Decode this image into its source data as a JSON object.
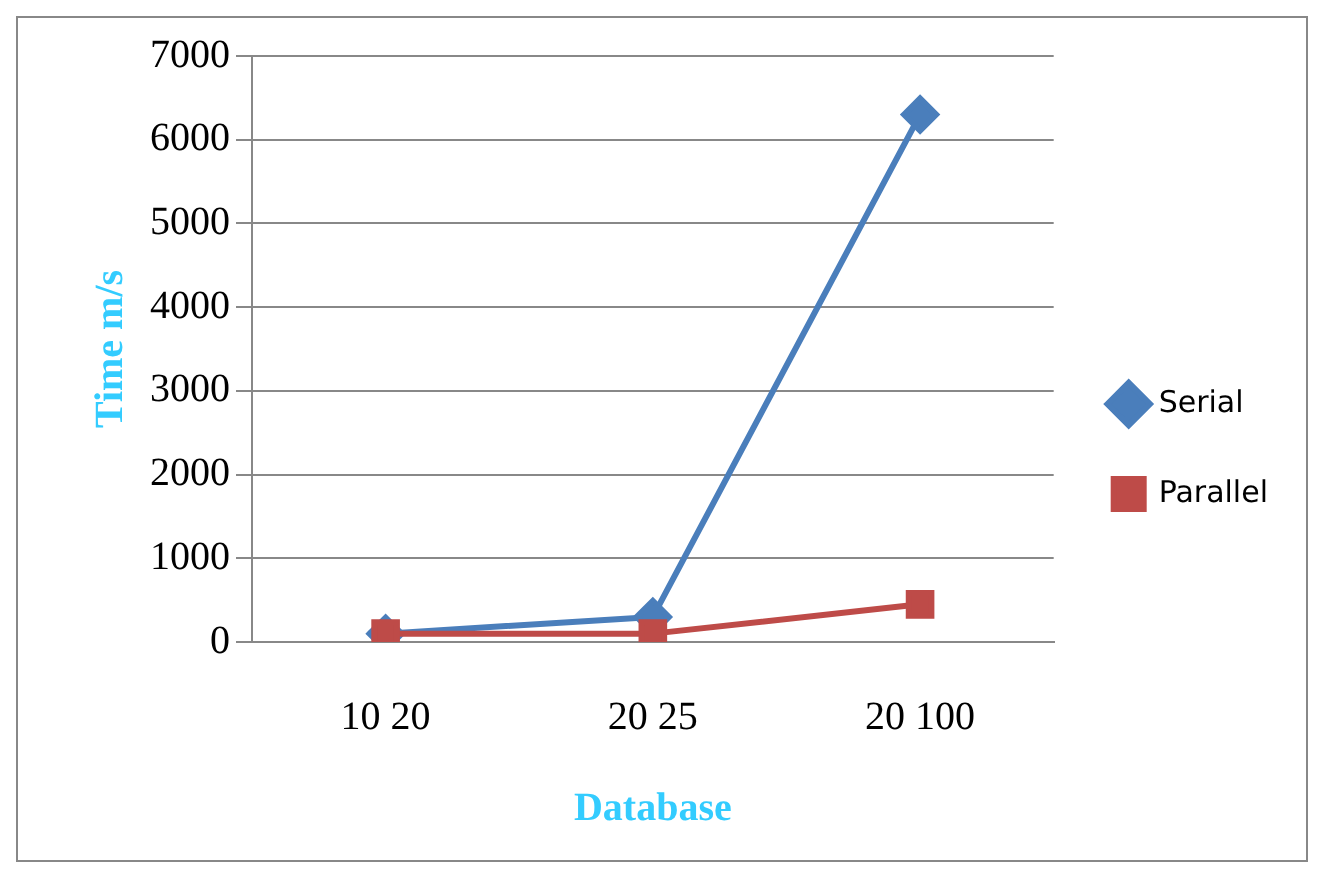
{
  "chart_data": {
    "type": "line",
    "xlabel": "Database",
    "ylabel": "Time m/s",
    "categories": [
      "10 20",
      "20 25",
      "20 100"
    ],
    "series": [
      {
        "name": "Serial",
        "color": "#4a7ebb",
        "values": [
          100,
          300,
          6300
        ],
        "marker": "diamond"
      },
      {
        "name": "Parallel",
        "color": "#be4b48",
        "values": [
          100,
          100,
          450
        ],
        "marker": "square"
      }
    ],
    "ylim": [
      0,
      7000
    ],
    "yticks": [
      0,
      1000,
      2000,
      3000,
      4000,
      5000,
      6000,
      7000
    ],
    "grid": "y",
    "legend": "right"
  }
}
